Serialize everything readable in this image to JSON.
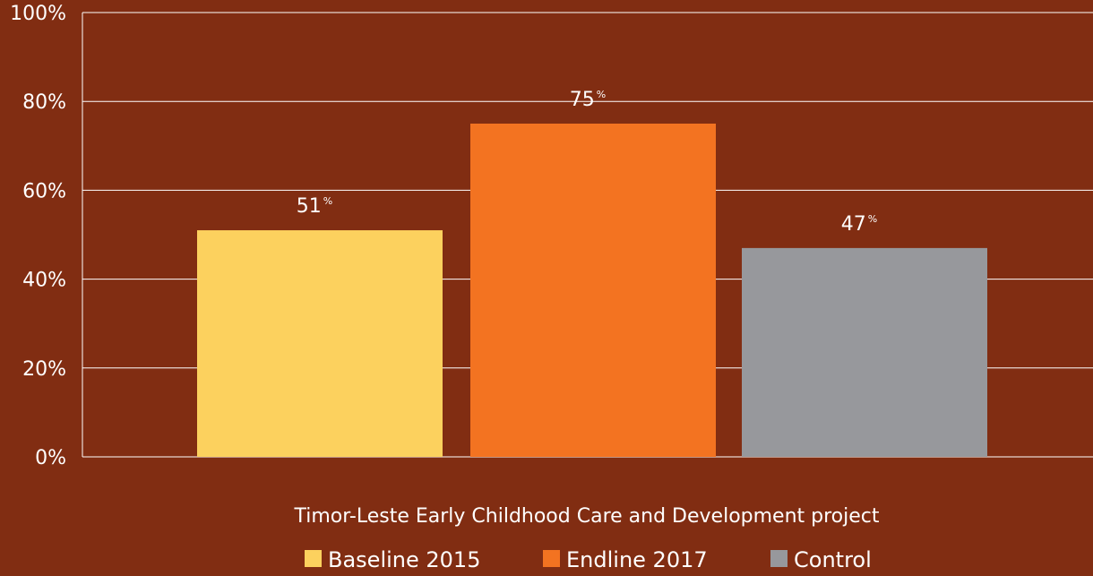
{
  "chart_data": {
    "type": "bar",
    "categories": [
      "Baseline 2015",
      "Endline 2017",
      "Control"
    ],
    "values": [
      51,
      75,
      47
    ],
    "data_labels": [
      "51",
      "75",
      "47"
    ],
    "data_label_suffix": "%",
    "colors": [
      "#fcd15e",
      "#f37321",
      "#97989c"
    ],
    "xlabel": "Timor-Leste Early Childhood Care and Development project",
    "ylim": [
      0,
      100
    ],
    "yticks": [
      0,
      20,
      40,
      60,
      80,
      100
    ],
    "ytick_labels": [
      "0%",
      "20%",
      "40%",
      "60%",
      "80%",
      "100%"
    ],
    "grid": true,
    "legend": {
      "position": "bottom",
      "entries": [
        "Baseline 2015",
        "Endline 2017",
        "Control"
      ]
    }
  }
}
